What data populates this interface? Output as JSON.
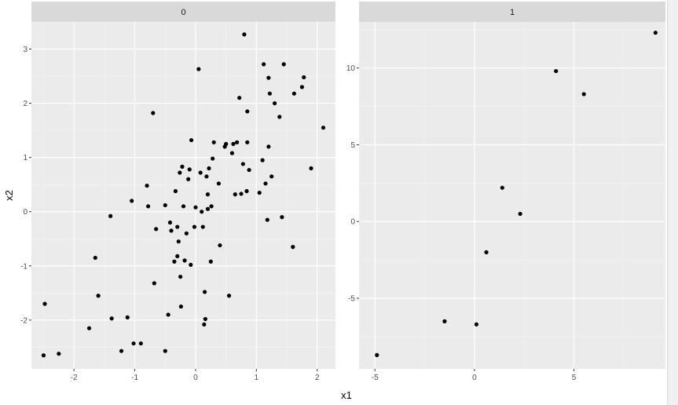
{
  "chart_data": {
    "type": "scatter",
    "xlabel": "x1",
    "ylabel": "x2",
    "facets": [
      {
        "label": "0",
        "xlim": [
          -2.7,
          2.3
        ],
        "ylim": [
          -2.9,
          3.5
        ],
        "x_ticks": [
          -2,
          -1,
          0,
          1,
          2
        ],
        "y_ticks": [
          -2,
          -1,
          0,
          1,
          2,
          3
        ],
        "points": [
          [
            -2.5,
            -2.65
          ],
          [
            -2.25,
            -2.62
          ],
          [
            -2.48,
            -1.7
          ],
          [
            -1.75,
            -2.15
          ],
          [
            -1.65,
            -0.85
          ],
          [
            -1.6,
            -1.55
          ],
          [
            -1.4,
            -0.08
          ],
          [
            -1.38,
            -1.97
          ],
          [
            -1.22,
            -2.57
          ],
          [
            -1.12,
            -1.95
          ],
          [
            -1.05,
            0.2
          ],
          [
            -1.02,
            -2.43
          ],
          [
            -0.9,
            -2.43
          ],
          [
            -0.8,
            0.48
          ],
          [
            -0.78,
            0.1
          ],
          [
            -0.7,
            1.82
          ],
          [
            -0.65,
            -0.32
          ],
          [
            -0.68,
            -1.32
          ],
          [
            -0.5,
            -2.57
          ],
          [
            -0.5,
            0.12
          ],
          [
            -0.45,
            -1.9
          ],
          [
            -0.42,
            -0.2
          ],
          [
            -0.4,
            -0.35
          ],
          [
            -0.35,
            -0.92
          ],
          [
            -0.33,
            0.38
          ],
          [
            -0.3,
            -0.82
          ],
          [
            -0.3,
            -0.28
          ],
          [
            -0.28,
            -0.55
          ],
          [
            -0.26,
            0.72
          ],
          [
            -0.25,
            -1.2
          ],
          [
            -0.24,
            -1.75
          ],
          [
            -0.22,
            0.83
          ],
          [
            -0.2,
            0.1
          ],
          [
            -0.18,
            -0.9
          ],
          [
            -0.15,
            -0.4
          ],
          [
            -0.12,
            0.6
          ],
          [
            -0.1,
            0.78
          ],
          [
            -0.08,
            -0.98
          ],
          [
            -0.07,
            1.32
          ],
          [
            -0.02,
            -0.28
          ],
          [
            0.0,
            0.08
          ],
          [
            0.05,
            2.63
          ],
          [
            0.08,
            0.72
          ],
          [
            0.1,
            0.0
          ],
          [
            0.12,
            -0.28
          ],
          [
            0.14,
            -2.08
          ],
          [
            0.15,
            -1.48
          ],
          [
            0.16,
            -1.98
          ],
          [
            0.18,
            0.65
          ],
          [
            0.2,
            0.32
          ],
          [
            0.2,
            0.05
          ],
          [
            0.22,
            0.8
          ],
          [
            0.25,
            -0.92
          ],
          [
            0.26,
            0.1
          ],
          [
            0.28,
            0.98
          ],
          [
            0.3,
            1.28
          ],
          [
            0.38,
            0.52
          ],
          [
            0.4,
            -0.62
          ],
          [
            0.48,
            1.2
          ],
          [
            0.5,
            1.25
          ],
          [
            0.55,
            -1.55
          ],
          [
            0.6,
            1.08
          ],
          [
            0.62,
            1.25
          ],
          [
            0.65,
            0.32
          ],
          [
            0.68,
            1.28
          ],
          [
            0.72,
            2.1
          ],
          [
            0.75,
            0.33
          ],
          [
            0.78,
            0.88
          ],
          [
            0.8,
            3.27
          ],
          [
            0.84,
            0.38
          ],
          [
            0.85,
            1.85
          ],
          [
            0.85,
            1.28
          ],
          [
            0.88,
            0.77
          ],
          [
            1.05,
            0.35
          ],
          [
            1.1,
            0.95
          ],
          [
            1.12,
            2.72
          ],
          [
            1.15,
            0.52
          ],
          [
            1.18,
            -0.15
          ],
          [
            1.2,
            1.2
          ],
          [
            1.2,
            2.47
          ],
          [
            1.22,
            2.18
          ],
          [
            1.25,
            0.65
          ],
          [
            1.3,
            2.0
          ],
          [
            1.38,
            1.75
          ],
          [
            1.42,
            -0.1
          ],
          [
            1.45,
            2.72
          ],
          [
            1.6,
            -0.65
          ],
          [
            1.62,
            2.18
          ],
          [
            1.75,
            2.3
          ],
          [
            1.78,
            2.48
          ],
          [
            1.9,
            0.8
          ],
          [
            2.1,
            1.55
          ]
        ]
      },
      {
        "label": "1",
        "xlim": [
          -5.8,
          9.6
        ],
        "ylim": [
          -9.6,
          13.0
        ],
        "x_ticks": [
          -5,
          0,
          5
        ],
        "y_ticks": [
          -5,
          0,
          5,
          10
        ],
        "points": [
          [
            -4.9,
            -8.7
          ],
          [
            -1.5,
            -6.5
          ],
          [
            0.1,
            -6.7
          ],
          [
            0.6,
            -2.0
          ],
          [
            1.4,
            2.2
          ],
          [
            2.3,
            0.5
          ],
          [
            4.1,
            9.8
          ],
          [
            5.5,
            8.3
          ],
          [
            9.1,
            12.3
          ]
        ]
      }
    ]
  }
}
